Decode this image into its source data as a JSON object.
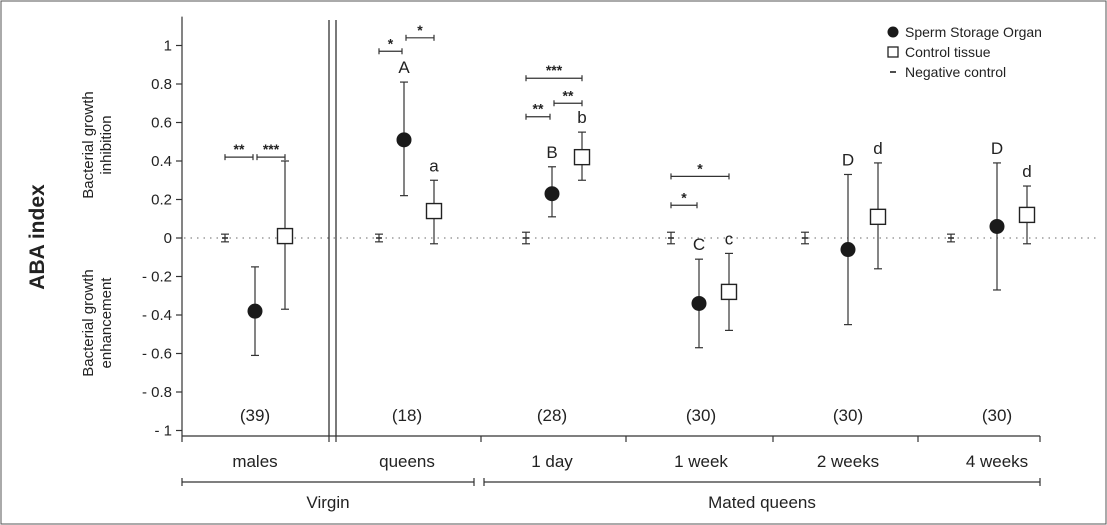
{
  "chart_data": {
    "type": "scatter",
    "ylabel": "ABA index",
    "y_side_labels": {
      "upper": [
        "Bacterial growth",
        "inhibition"
      ],
      "lower": [
        "Bacterial growth",
        "enhancement"
      ]
    },
    "ylim": [
      -1.05,
      1.15
    ],
    "yticks": [
      {
        "value": 1,
        "label": "1"
      },
      {
        "value": 0.8,
        "label": "0.8"
      },
      {
        "value": 0.6,
        "label": "0.6"
      },
      {
        "value": 0.4,
        "label": "0.4"
      },
      {
        "value": 0.2,
        "label": "0.2"
      },
      {
        "value": 0,
        "label": "0"
      },
      {
        "value": -0.2,
        "label": "- 0.2"
      },
      {
        "value": -0.4,
        "label": "- 0.4"
      },
      {
        "value": -0.6,
        "label": "- 0.6"
      },
      {
        "value": -0.8,
        "label": "- 0.8"
      },
      {
        "value": -1,
        "label": "- 1"
      }
    ],
    "reference_line": 0,
    "legend": {
      "position": "top-right",
      "entries": [
        {
          "marker": "filled-circle",
          "label": "Sperm Storage Organ"
        },
        {
          "marker": "open-square",
          "label": "Control tissue"
        },
        {
          "marker": "dash",
          "label": "Negative control"
        }
      ]
    },
    "categories": [
      {
        "label": "males",
        "n": "(39)",
        "negative_control": {
          "mean": 0.0,
          "low": -0.02,
          "high": 0.02
        },
        "sperm_storage_organ": {
          "mean": -0.38,
          "low": -0.61,
          "high": -0.15,
          "letter": ""
        },
        "control_tissue": {
          "mean": 0.01,
          "low": -0.37,
          "high": 0.4,
          "letter": ""
        },
        "significance": [
          {
            "from": "negative_control",
            "to": "sperm_storage_organ",
            "y": 0.42,
            "stars": "**"
          },
          {
            "from": "sperm_storage_organ",
            "to": "control_tissue",
            "y": 0.42,
            "stars": "***"
          }
        ]
      },
      {
        "label": "queens",
        "n": "(18)",
        "negative_control": {
          "mean": 0.0,
          "low": -0.02,
          "high": 0.02
        },
        "sperm_storage_organ": {
          "mean": 0.51,
          "low": 0.22,
          "high": 0.81,
          "letter": "A"
        },
        "control_tissue": {
          "mean": 0.14,
          "low": -0.03,
          "high": 0.3,
          "letter": "a"
        },
        "significance": [
          {
            "from": "negative_control",
            "to": "sperm_storage_organ",
            "y": 0.97,
            "stars": "*"
          },
          {
            "from": "sperm_storage_organ",
            "to": "control_tissue",
            "y": 1.04,
            "stars": "*"
          }
        ]
      },
      {
        "label": "1 day",
        "n": "(28)",
        "negative_control": {
          "mean": 0.0,
          "low": -0.03,
          "high": 0.03
        },
        "sperm_storage_organ": {
          "mean": 0.23,
          "low": 0.11,
          "high": 0.37,
          "letter": "B"
        },
        "control_tissue": {
          "mean": 0.42,
          "low": 0.3,
          "high": 0.55,
          "letter": "b"
        },
        "significance": [
          {
            "from": "negative_control",
            "to": "control_tissue",
            "y": 0.83,
            "stars": "***"
          },
          {
            "from": "negative_control",
            "to": "sperm_storage_organ",
            "y": 0.63,
            "stars": "**"
          },
          {
            "from": "sperm_storage_organ",
            "to": "control_tissue",
            "y": 0.7,
            "stars": "**"
          }
        ]
      },
      {
        "label": "1 week",
        "n": "(30)",
        "negative_control": {
          "mean": 0.0,
          "low": -0.03,
          "high": 0.03
        },
        "sperm_storage_organ": {
          "mean": -0.34,
          "low": -0.57,
          "high": -0.11,
          "letter": "C"
        },
        "control_tissue": {
          "mean": -0.28,
          "low": -0.48,
          "high": -0.08,
          "letter": "c"
        },
        "significance": [
          {
            "from": "negative_control",
            "to": "control_tissue",
            "y": 0.32,
            "stars": "*"
          },
          {
            "from": "negative_control",
            "to": "sperm_storage_organ",
            "y": 0.17,
            "stars": "*"
          }
        ]
      },
      {
        "label": "2 weeks",
        "n": "(30)",
        "negative_control": {
          "mean": 0.0,
          "low": -0.03,
          "high": 0.03
        },
        "sperm_storage_organ": {
          "mean": -0.06,
          "low": -0.45,
          "high": 0.33,
          "letter": "D"
        },
        "control_tissue": {
          "mean": 0.11,
          "low": -0.16,
          "high": 0.39,
          "letter": "d"
        },
        "significance": []
      },
      {
        "label": "4 weeks",
        "n": "(30)",
        "negative_control": {
          "mean": 0.0,
          "low": -0.02,
          "high": 0.02
        },
        "sperm_storage_organ": {
          "mean": 0.06,
          "low": -0.27,
          "high": 0.39,
          "letter": "D"
        },
        "control_tissue": {
          "mean": 0.12,
          "low": -0.03,
          "high": 0.27,
          "letter": "d"
        },
        "significance": []
      }
    ],
    "groups": [
      {
        "label": "Virgin",
        "categories": [
          "males",
          "queens"
        ]
      },
      {
        "label": "Mated queens",
        "categories": [
          "1 day",
          "1 week",
          "2 weeks",
          "4 weeks"
        ]
      }
    ]
  }
}
